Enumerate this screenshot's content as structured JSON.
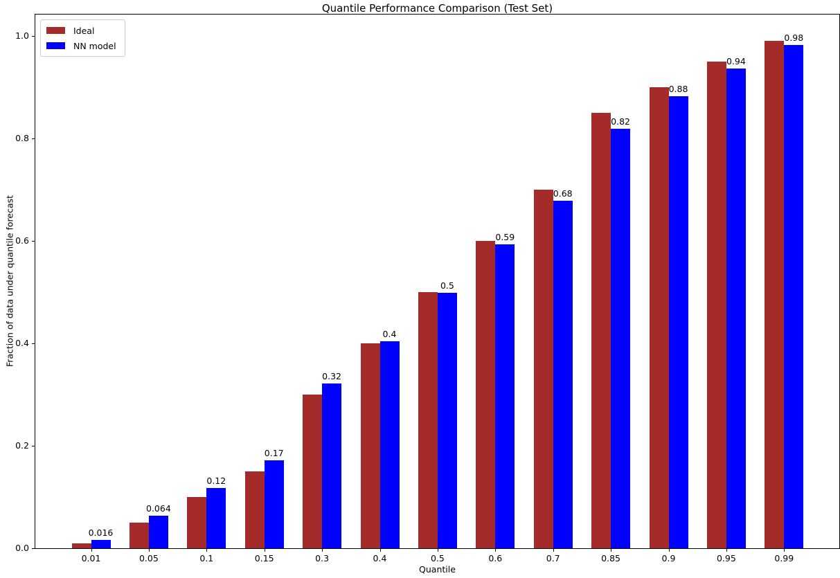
{
  "chart_data": {
    "type": "bar",
    "title": "Quantile Performance Comparison (Test Set)",
    "xlabel": "Quantile",
    "ylabel": "Fraction of data under quantile forecast",
    "categories": [
      "0.01",
      "0.05",
      "0.1",
      "0.15",
      "0.3",
      "0.4",
      "0.5",
      "0.6",
      "0.7",
      "0.85",
      "0.9",
      "0.95",
      "0.99"
    ],
    "series": [
      {
        "name": "Ideal",
        "color": "#a52a2a",
        "values": [
          0.01,
          0.05,
          0.1,
          0.15,
          0.3,
          0.4,
          0.5,
          0.6,
          0.7,
          0.85,
          0.9,
          0.95,
          0.99
        ]
      },
      {
        "name": "NN model",
        "color": "#0000ff",
        "values": [
          0.016,
          0.064,
          0.117,
          0.172,
          0.322,
          0.404,
          0.498,
          0.593,
          0.678,
          0.819,
          0.882,
          0.937,
          0.983
        ],
        "bar_labels": [
          "0.016",
          "0.064",
          "0.12",
          "0.17",
          "0.32",
          "0.4",
          "0.5",
          "0.59",
          "0.68",
          "0.82",
          "0.88",
          "0.94",
          "0.98"
        ]
      }
    ],
    "yticks": [
      "0.0",
      "0.2",
      "0.4",
      "0.6",
      "0.8",
      "1.0"
    ],
    "ylim": [
      0,
      1.043
    ],
    "legend_position": "upper left",
    "grid": false,
    "background_color": "#ffffff",
    "spine_color": "#000000",
    "text_color": "#000000"
  }
}
